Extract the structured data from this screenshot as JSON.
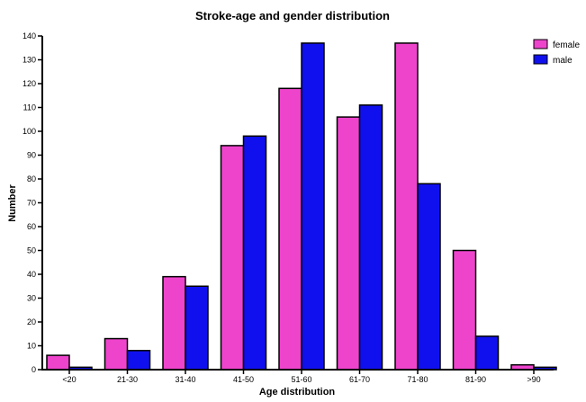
{
  "chart_data": {
    "type": "bar",
    "title": "Stroke-age and gender distribution",
    "xlabel": "Age distribution",
    "ylabel": "Number",
    "categories": [
      "<20",
      "21-30",
      "31-40",
      "41-50",
      "51-60",
      "61-70",
      "71-80",
      "81-90",
      ">90"
    ],
    "series": [
      {
        "name": "female",
        "color": "#ee44cc",
        "values": [
          6,
          13,
          39,
          94,
          118,
          106,
          137,
          50,
          2
        ]
      },
      {
        "name": "male",
        "color": "#1010ee",
        "values": [
          1,
          8,
          35,
          98,
          137,
          111,
          78,
          14,
          1
        ]
      }
    ],
    "ylim": [
      0,
      140
    ],
    "yticks": [
      0,
      10,
      20,
      30,
      40,
      50,
      60,
      70,
      80,
      90,
      100,
      110,
      120,
      130,
      140
    ],
    "grid": false,
    "legend_position": "top-right"
  }
}
